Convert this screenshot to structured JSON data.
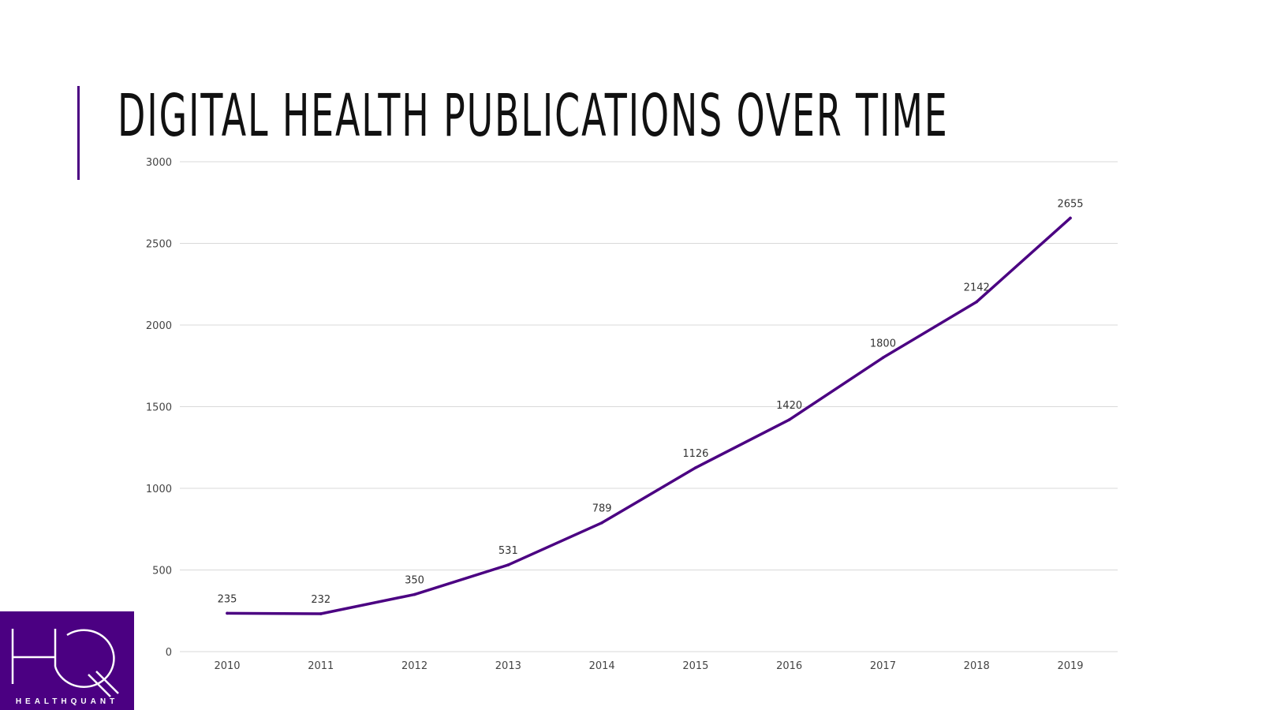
{
  "title": "DIGITAL HEALTH PUBLICATIONS OVER TIME",
  "logo": {
    "letters": "HQ",
    "text": "HEALTHQUANT",
    "background": "#4b0082"
  },
  "chart_data": {
    "type": "line",
    "title": "DIGITAL HEALTH PUBLICATIONS OVER TIME",
    "categories": [
      "2010",
      "2011",
      "2012",
      "2013",
      "2014",
      "2015",
      "2016",
      "2017",
      "2018",
      "2019"
    ],
    "values": [
      235,
      232,
      350,
      531,
      789,
      1126,
      1420,
      1800,
      2142,
      2655
    ],
    "ylim": [
      0,
      3000
    ],
    "yticks": [
      0,
      500,
      1000,
      1500,
      2000,
      2500,
      3000
    ],
    "grid": true,
    "data_labels": true,
    "line_color": "#4b0082",
    "xlabel": "",
    "ylabel": ""
  }
}
